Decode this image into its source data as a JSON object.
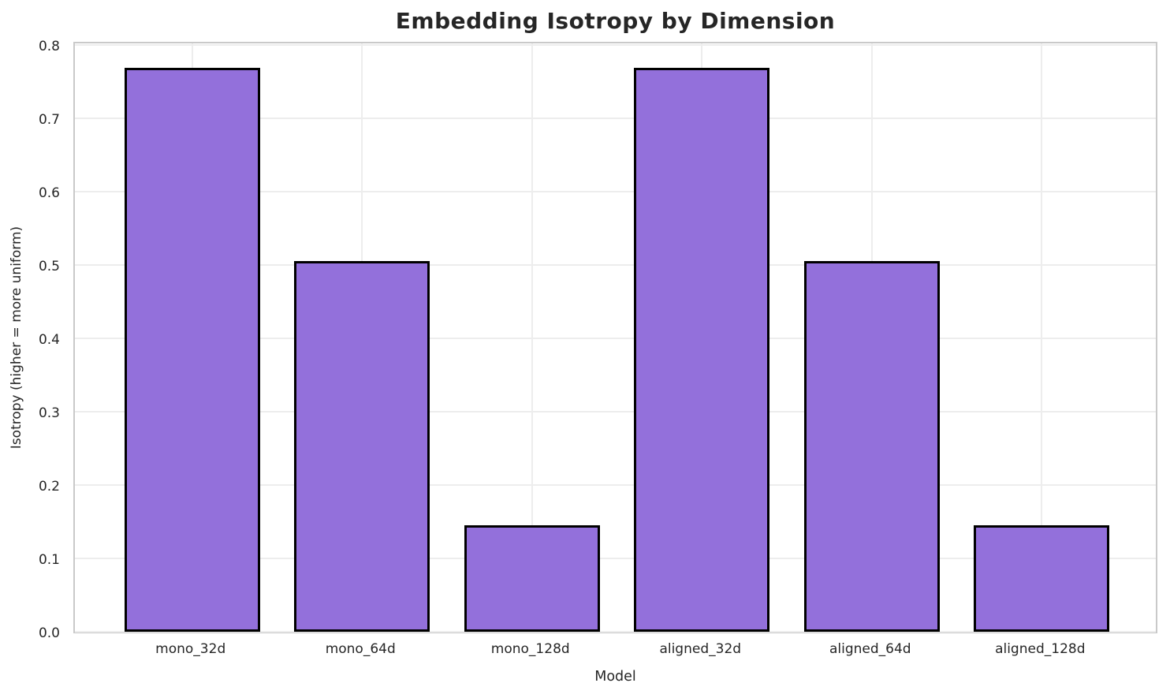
{
  "figure": {
    "title": "Embedding Isotropy by Dimension"
  },
  "chart_data": {
    "type": "bar",
    "title": "Embedding Isotropy by Dimension",
    "xlabel": "Model",
    "ylabel": "Isotropy (higher = more uniform)",
    "categories": [
      "mono_32d",
      "mono_64d",
      "mono_128d",
      "aligned_32d",
      "aligned_64d",
      "aligned_128d"
    ],
    "values": [
      0.768,
      0.505,
      0.145,
      0.768,
      0.505,
      0.145
    ],
    "ylim": [
      0,
      0.806
    ],
    "xlim": [
      -0.69,
      5.69
    ],
    "yticks": [
      0.0,
      0.1,
      0.2,
      0.3,
      0.4,
      0.5,
      0.6,
      0.7,
      0.8
    ],
    "ytick_labels": [
      "0.0",
      "0.1",
      "0.2",
      "0.3",
      "0.4",
      "0.5",
      "0.6",
      "0.7",
      "0.8"
    ],
    "bar_width": 0.8,
    "grid": true,
    "legend": null,
    "colors": {
      "bar_fill": "#9370DB",
      "bar_edge": "#000000",
      "grid_line": "#ededed",
      "spine": "#c9c9c9",
      "text": "#262626",
      "background": "#ffffff"
    }
  }
}
